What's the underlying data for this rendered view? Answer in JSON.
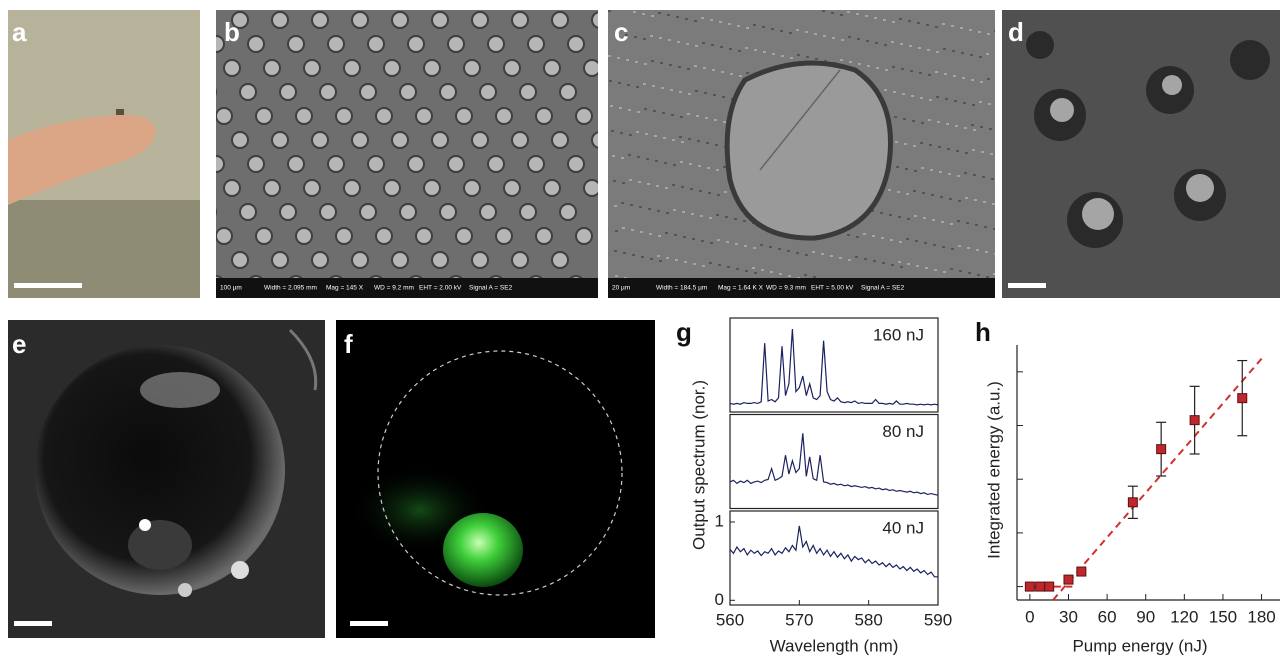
{
  "panels": [
    "a",
    "b",
    "c",
    "d",
    "e",
    "f",
    "g",
    "h"
  ],
  "sem": [
    {
      "scale": "100 µm",
      "fields": [
        "Width = 2.095 mm",
        "Mag = 145 X",
        "WD = 9.2 mm",
        "EHT = 2.00 kV",
        "Signal A = SE2"
      ]
    },
    {
      "scale": "20 µm",
      "fields": [
        "Width = 184.5 µm",
        "Mag = 1.64 K X",
        "WD = 9.3 mm",
        "EHT = 5.00 kV",
        "Signal A = SE2"
      ]
    }
  ],
  "chart_data": [
    {
      "type": "line",
      "xlabel": "Wavelength (nm)",
      "ylabel": "Output spectrum (nor.)",
      "xlim": [
        560,
        590
      ],
      "xticks": [
        560,
        570,
        580,
        590
      ],
      "ylim": [
        -0.06,
        1.14
      ],
      "yticks": [
        0,
        1
      ],
      "x": [
        560,
        560.5,
        561,
        561.5,
        562,
        562.5,
        563,
        563.5,
        564,
        564.5,
        565,
        565.5,
        566,
        566.5,
        567,
        567.5,
        568,
        568.5,
        569,
        569.5,
        570,
        570.5,
        571,
        571.5,
        572,
        572.5,
        573,
        573.5,
        574,
        574.5,
        575,
        575.5,
        576,
        576.5,
        577,
        577.5,
        578,
        578.5,
        579,
        579.5,
        580,
        580.5,
        581,
        581.5,
        582,
        582.5,
        583,
        583.5,
        584,
        584.5,
        585,
        585.5,
        586,
        586.5,
        587,
        587.5,
        588,
        588.5,
        589,
        589.5,
        590
      ],
      "series": [
        {
          "name": "160 nJ",
          "color": "#1c2260",
          "values": [
            0.05,
            0.04,
            0.05,
            0.04,
            0.06,
            0.05,
            0.05,
            0.06,
            0.05,
            0.07,
            0.82,
            0.08,
            0.1,
            0.07,
            0.12,
            0.78,
            0.15,
            0.3,
            1.0,
            0.2,
            0.25,
            0.4,
            0.15,
            0.3,
            0.12,
            0.1,
            0.15,
            0.85,
            0.2,
            0.1,
            0.08,
            0.12,
            0.07,
            0.06,
            0.07,
            0.06,
            0.08,
            0.05,
            0.06,
            0.05,
            0.05,
            0.05,
            0.1,
            0.05,
            0.05,
            0.04,
            0.05,
            0.04,
            0.08,
            0.04,
            0.04,
            0.05,
            0.04,
            0.04,
            0.03,
            0.04,
            0.03,
            0.04,
            0.03,
            0.04,
            0.03
          ]
        },
        {
          "name": "80 nJ",
          "color": "#1c2260",
          "values": [
            0.28,
            0.3,
            0.26,
            0.29,
            0.27,
            0.3,
            0.26,
            0.28,
            0.29,
            0.27,
            0.3,
            0.31,
            0.45,
            0.3,
            0.32,
            0.35,
            0.62,
            0.38,
            0.55,
            0.4,
            0.45,
            0.9,
            0.35,
            0.6,
            0.32,
            0.3,
            0.62,
            0.28,
            0.27,
            0.25,
            0.26,
            0.24,
            0.25,
            0.23,
            0.24,
            0.22,
            0.23,
            0.22,
            0.21,
            0.22,
            0.2,
            0.21,
            0.19,
            0.2,
            0.18,
            0.19,
            0.17,
            0.18,
            0.16,
            0.17,
            0.16,
            0.15,
            0.16,
            0.14,
            0.15,
            0.13,
            0.14,
            0.12,
            0.13,
            0.12,
            0.11
          ]
        },
        {
          "name": "40 nJ",
          "color": "#1c2260",
          "values": [
            0.65,
            0.6,
            0.68,
            0.62,
            0.66,
            0.58,
            0.64,
            0.6,
            0.63,
            0.57,
            0.62,
            0.6,
            0.66,
            0.58,
            0.63,
            0.6,
            0.67,
            0.62,
            0.7,
            0.64,
            0.95,
            0.68,
            0.75,
            0.62,
            0.7,
            0.6,
            0.66,
            0.58,
            0.64,
            0.56,
            0.62,
            0.55,
            0.6,
            0.53,
            0.58,
            0.5,
            0.56,
            0.52,
            0.54,
            0.48,
            0.52,
            0.47,
            0.5,
            0.45,
            0.48,
            0.43,
            0.47,
            0.42,
            0.45,
            0.4,
            0.43,
            0.38,
            0.42,
            0.37,
            0.4,
            0.35,
            0.38,
            0.33,
            0.36,
            0.3,
            0.3
          ]
        }
      ]
    },
    {
      "type": "scatter",
      "xlabel": "Pump energy (nJ)",
      "ylabel": "Integrated energy (a.u.)",
      "xlim": [
        -10,
        185
      ],
      "xticks": [
        0,
        30,
        60,
        90,
        120,
        150,
        180
      ],
      "ylim": [
        -0.25,
        4.5
      ],
      "yticks": [
        0,
        1,
        2,
        3,
        4
      ],
      "ytick_labels": false,
      "series": [
        {
          "color": "#c0272d",
          "x": [
            0,
            8,
            15,
            30,
            40,
            80,
            102,
            128,
            165
          ],
          "values": [
            0,
            0,
            0,
            0.13,
            0.28,
            1.57,
            2.56,
            3.1,
            3.51
          ],
          "errors": [
            null,
            null,
            null,
            null,
            null,
            0.3,
            0.5,
            0.63,
            0.7
          ]
        }
      ],
      "fits": [
        {
          "color": "#d0312d",
          "x": [
            0,
            33
          ],
          "values": [
            0,
            0
          ]
        },
        {
          "color": "#d0312d",
          "x": [
            18,
            182
          ],
          "values": [
            -0.25,
            4.3
          ]
        }
      ]
    }
  ]
}
